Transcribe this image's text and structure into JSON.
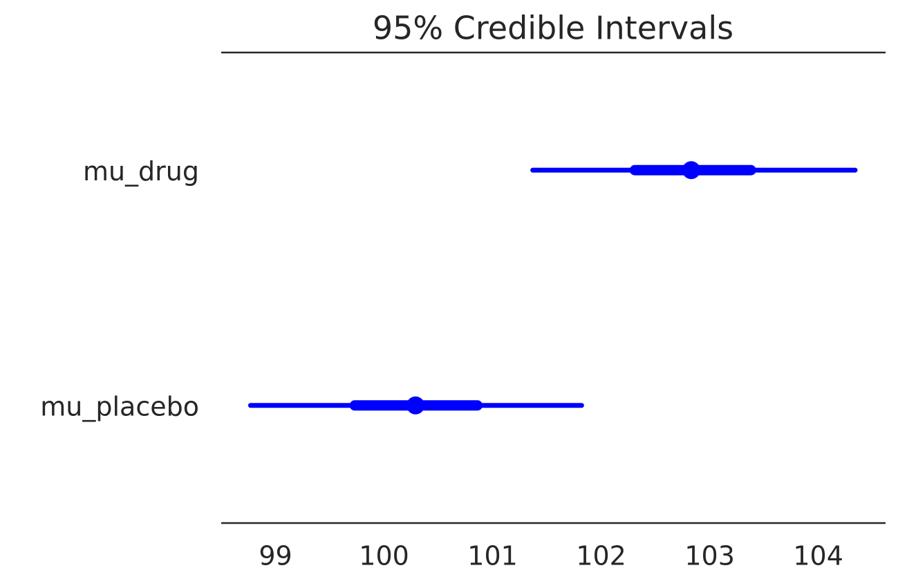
{
  "chart_data": {
    "type": "forest",
    "title": "95% Credible Intervals",
    "categories": [
      "mu_drug",
      "mu_placebo"
    ],
    "hdi_low": [
      101.37,
      98.77
    ],
    "hdi_high": [
      104.34,
      101.82
    ],
    "iqr_low": [
      102.31,
      99.73
    ],
    "iqr_high": [
      103.38,
      100.86
    ],
    "median": [
      102.83,
      100.29
    ],
    "color": "#0000ff",
    "xlim": [
      98.5,
      104.62
    ],
    "xticks": [
      99,
      100,
      101,
      102,
      103,
      104
    ],
    "grid": false
  }
}
